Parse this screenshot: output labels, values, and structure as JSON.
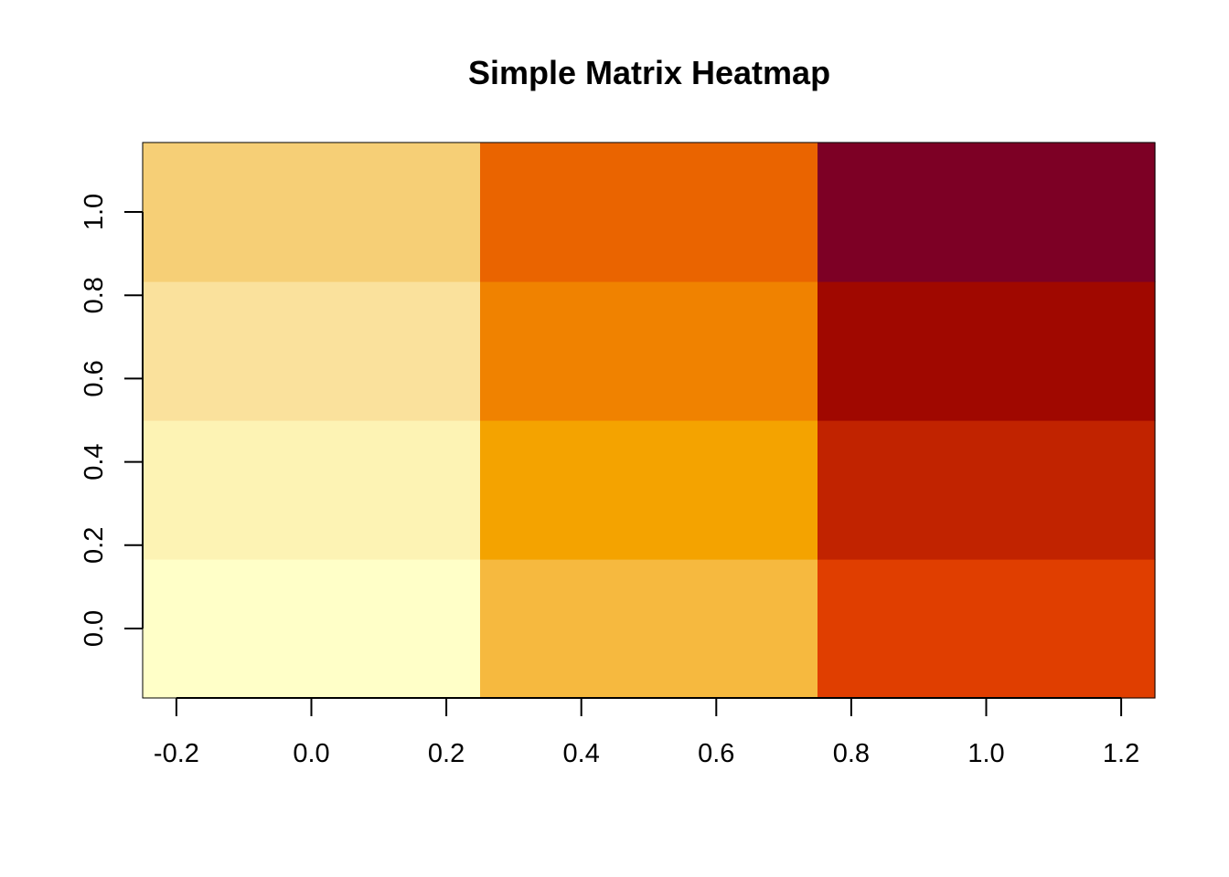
{
  "chart_data": {
    "type": "heatmap",
    "title": "Simple Matrix Heatmap",
    "xlabel": "",
    "ylabel": "",
    "x_ticks": [
      "-0.2",
      "0.0",
      "0.2",
      "0.4",
      "0.6",
      "0.8",
      "1.0",
      "1.2"
    ],
    "y_ticks": [
      "0.0",
      "0.2",
      "0.4",
      "0.6",
      "0.8",
      "1.0"
    ],
    "x_tick_values": [
      -0.2,
      0.0,
      0.2,
      0.4,
      0.6,
      0.8,
      1.0,
      1.2
    ],
    "y_tick_values": [
      0.0,
      0.2,
      0.4,
      0.6,
      0.8,
      1.0
    ],
    "xlim": [
      -0.25,
      1.25
    ],
    "ylim": [
      -0.1667,
      1.1667
    ],
    "columns": [
      0.0,
      0.5,
      1.0
    ],
    "rows": [
      0.0,
      0.3333,
      0.6667,
      1.0
    ],
    "values": [
      [
        1,
        2,
        3,
        4
      ],
      [
        5,
        6,
        7,
        8
      ],
      [
        9,
        10,
        11,
        12
      ]
    ],
    "colors": [
      [
        "#FFFFC8",
        "#FDF3B4",
        "#FAE19C",
        "#F6CF76"
      ],
      [
        "#F6B93F",
        "#F4A300",
        "#F08200",
        "#EA6400"
      ],
      [
        "#E03E00",
        "#C12300",
        "#A00800",
        "#7D0025"
      ]
    ],
    "color_scale": "heat",
    "grid": false,
    "legend": "none"
  }
}
